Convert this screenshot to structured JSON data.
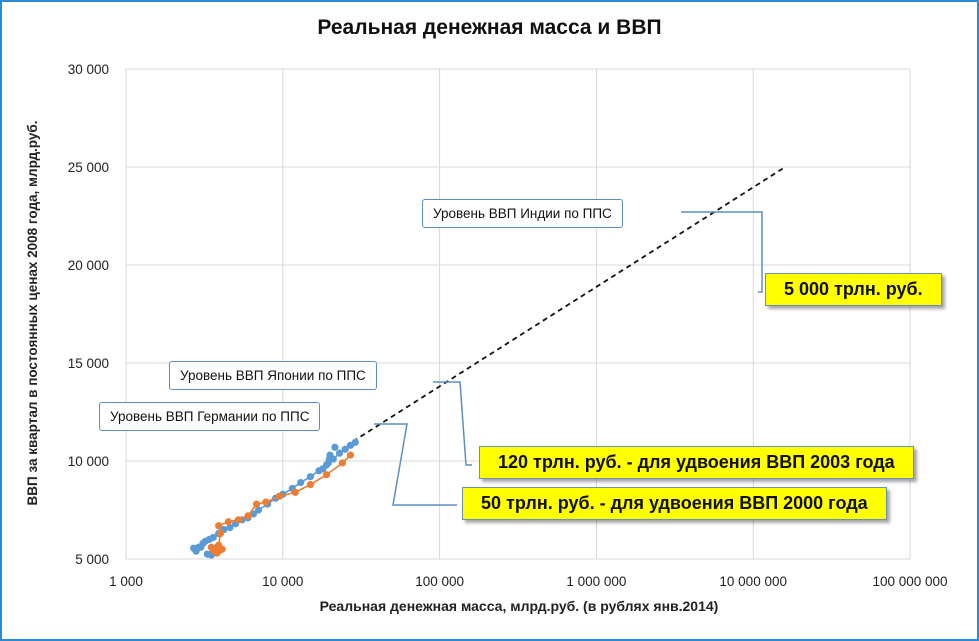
{
  "chart_data": {
    "type": "scatter",
    "title": "Реальная денежная масса и ВВП",
    "xlabel": "Реальная денежная масса, млрд.руб. (в рублях янв.2014)",
    "ylabel": "ВВП за квартал в постоянных ценах 2008 года, млрд.руб.",
    "x_scale": "log",
    "xlim": [
      1000,
      100000000
    ],
    "ylim": [
      5000,
      30000
    ],
    "x_ticks": [
      "1 000",
      "10 000",
      "100 000",
      "1 000 000",
      "10 000 000",
      "100 000 000"
    ],
    "y_ticks": [
      "5 000",
      "10 000",
      "15 000",
      "20 000",
      "25 000",
      "30 000"
    ],
    "grid": true,
    "series": [
      {
        "color": "#5b9bd5",
        "style": "markers+line",
        "points": [
          [
            2700,
            5550
          ],
          [
            2750,
            5500
          ],
          [
            2800,
            5400
          ],
          [
            2900,
            5600
          ],
          [
            3000,
            5600
          ],
          [
            3100,
            5800
          ],
          [
            3200,
            5900
          ],
          [
            3400,
            6000
          ],
          [
            3600,
            6100
          ],
          [
            3900,
            6300
          ],
          [
            4200,
            6500
          ],
          [
            4600,
            6600
          ],
          [
            5000,
            6800
          ],
          [
            5500,
            7000
          ],
          [
            6000,
            7100
          ],
          [
            6500,
            7300
          ],
          [
            7000,
            7500
          ],
          [
            8000,
            7800
          ],
          [
            9000,
            8100
          ],
          [
            10000,
            8300
          ],
          [
            11500,
            8600
          ],
          [
            13000,
            8900
          ],
          [
            15000,
            9200
          ],
          [
            17000,
            9500
          ],
          [
            19000,
            9800
          ],
          [
            21000,
            10100
          ],
          [
            23000,
            10400
          ],
          [
            25000,
            10600
          ],
          [
            27000,
            10800
          ],
          [
            29000,
            10950
          ]
        ],
        "points_extra": [
          [
            3300,
            5250
          ],
          [
            3500,
            5200
          ],
          [
            3600,
            5400
          ],
          [
            3800,
            5600
          ],
          [
            18000,
            9600
          ],
          [
            19500,
            9900
          ],
          [
            20000,
            10300
          ],
          [
            19800,
            10100
          ],
          [
            21500,
            10700
          ]
        ]
      },
      {
        "color": "#ed7d31",
        "style": "markers+line",
        "points": [
          [
            3500,
            5600
          ],
          [
            3700,
            5500
          ],
          [
            3900,
            5400
          ],
          [
            4100,
            5500
          ],
          [
            3800,
            5300
          ],
          [
            3600,
            5450
          ],
          [
            3900,
            5700
          ],
          [
            4000,
            6300
          ],
          [
            3900,
            6700
          ],
          [
            4500,
            6900
          ],
          [
            5200,
            7000
          ],
          [
            6000,
            7200
          ],
          [
            6800,
            7800
          ],
          [
            7800,
            7900
          ],
          [
            9500,
            8200
          ],
          [
            12000,
            8400
          ],
          [
            15000,
            8800
          ],
          [
            19000,
            9300
          ],
          [
            24000,
            9900
          ],
          [
            27000,
            10300
          ]
        ]
      }
    ],
    "trend_line": {
      "from": [
        28000,
        11000
      ],
      "to": [
        16000000,
        25000
      ],
      "style": "dashed"
    },
    "annotations": [
      {
        "text": "Уровень ВВП Индии по ППС",
        "target_label": "5 000 трлн. руб."
      },
      {
        "text": "Уровень ВВП Японии по ППС",
        "target_label": "120 трлн. руб. - для удвоения ВВП 2003 года"
      },
      {
        "text": "Уровень ВВП Германии по ППС",
        "target_label": "50 трлн. руб. - для удвоения ВВП 2000 года"
      }
    ]
  },
  "colors": {
    "frame": "#2b8ad6",
    "grid": "#d9d9d9",
    "callout_border": "#5b8fc4",
    "highlight": "#ffff00"
  }
}
